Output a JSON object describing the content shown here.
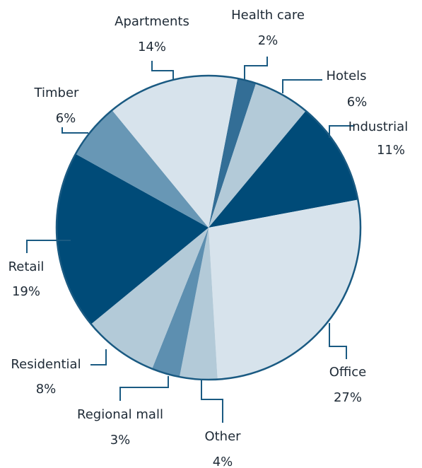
{
  "chart_data": {
    "type": "pie",
    "categories": [
      "Health care",
      "Hotels",
      "Industrial",
      "Office",
      "Other",
      "Regional mall",
      "Residential",
      "Retail",
      "Timber",
      "Apartments"
    ],
    "values": [
      2,
      6,
      11,
      27,
      4,
      3,
      8,
      19,
      6,
      14
    ],
    "value_labels": [
      "2%",
      "6%",
      "11%",
      "27%",
      "4%",
      "3%",
      "8%",
      "19%",
      "6%",
      "14%"
    ],
    "colors": [
      "#336e96",
      "#b3cad8",
      "#004b78",
      "#d7e3ec",
      "#b3cad8",
      "#5d8fb0",
      "#b3cad8",
      "#004b78",
      "#6897b5",
      "#d7e3ec"
    ]
  }
}
